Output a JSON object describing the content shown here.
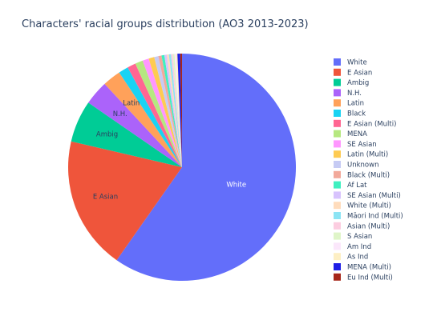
{
  "chart_data": {
    "type": "pie",
    "title": "Characters' racial groups distribution (AO3 2013-2023)",
    "legend_position": "right",
    "slices": [
      {
        "label": "White",
        "value": 60.0,
        "color": "#636efa",
        "show_label": true
      },
      {
        "label": "E Asian",
        "value": 19.0,
        "color": "#ef553b",
        "show_label": true
      },
      {
        "label": "Ambig",
        "value": 6.0,
        "color": "#00cc96",
        "show_label": true
      },
      {
        "label": "N.H.",
        "value": 3.5,
        "color": "#ab63fa",
        "show_label": true
      },
      {
        "label": "Latin",
        "value": 2.6,
        "color": "#ffa15a",
        "show_label": true
      },
      {
        "label": "Black",
        "value": 1.4,
        "color": "#19d3f3",
        "show_label": false
      },
      {
        "label": "E Asian (Multi)",
        "value": 1.2,
        "color": "#ff6692",
        "show_label": false
      },
      {
        "label": "MENA",
        "value": 1.1,
        "color": "#b6e880",
        "show_label": false
      },
      {
        "label": "SE Asian",
        "value": 0.9,
        "color": "#ff97ff",
        "show_label": false
      },
      {
        "label": "Latin (Multi)",
        "value": 0.8,
        "color": "#fecb52",
        "show_label": false
      },
      {
        "label": "Unknown",
        "value": 0.6,
        "color": "#c6cbf4",
        "show_label": false
      },
      {
        "label": "Black (Multi)",
        "value": 0.45,
        "color": "#f2a99b",
        "show_label": false
      },
      {
        "label": "Af Lat",
        "value": 0.4,
        "color": "#3ff0c0",
        "show_label": false
      },
      {
        "label": "SE Asian (Multi)",
        "value": 0.35,
        "color": "#d8c3fd",
        "show_label": false
      },
      {
        "label": "White (Multi)",
        "value": 0.3,
        "color": "#ffdcbc",
        "show_label": false
      },
      {
        "label": "Māori Ind (Multi)",
        "value": 0.3,
        "color": "#8ce4f4",
        "show_label": false
      },
      {
        "label": "Asian (Multi)",
        "value": 0.25,
        "color": "#fccde0",
        "show_label": false
      },
      {
        "label": "S Asian",
        "value": 0.25,
        "color": "#dff5c8",
        "show_label": false
      },
      {
        "label": "Am Ind",
        "value": 0.2,
        "color": "#fbe7fb",
        "show_label": false
      },
      {
        "label": "As Ind",
        "value": 0.2,
        "color": "#fdefc4",
        "show_label": false
      },
      {
        "label": "MENA (Multi)",
        "value": 0.4,
        "color": "#1e1ee6",
        "show_label": false
      },
      {
        "label": "Eu Ind (Multi)",
        "value": 0.25,
        "color": "#a6261a",
        "show_label": false
      }
    ]
  }
}
